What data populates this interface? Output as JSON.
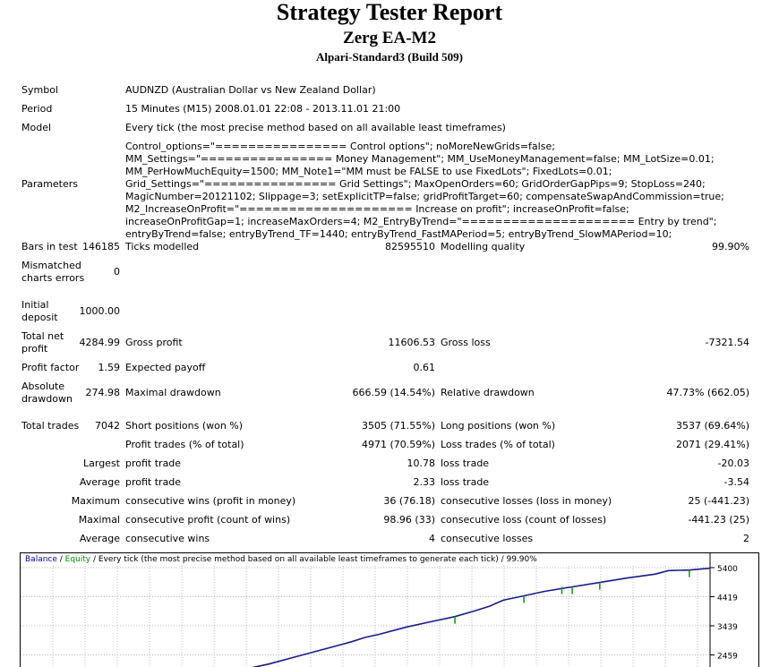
{
  "header": {
    "title": "Strategy Tester Report",
    "ea_name": "Zerg EA-M2",
    "server": "Alpari-Standard3 (Build 509)"
  },
  "info": {
    "symbol_label": "Symbol",
    "symbol_value": "AUDNZD (Australian Dollar vs New Zealand Dollar)",
    "period_label": "Period",
    "period_value": "15 Minutes (M15) 2008.01.01 22:08 - 2013.11.01 21:00",
    "model_label": "Model",
    "model_value": "Every tick (the most precise method based on all available least timeframes)",
    "parameters_label": "Parameters",
    "parameters_value": "Control_options=\"================ Control options\"; noMoreNewGrids=false; MM_Settings=\"================ Money Management\"; MM_UseMoneyManagement=false; MM_LotSize=0.01; MM_PerHowMuchEquity=1500; MM_Note1=\"MM must be FALSE to use FixedLots\"; FixedLots=0.01; Grid_Settings=\"================ Grid Settings\"; MaxOpenOrders=60; GridOrderGapPips=9; StopLoss=240; MagicNumber=20121102; Slippage=3; setExplicitTP=false; gridProfitTarget=60; compensateSwapAndCommission=true; M2_IncreaseOnProfit=\"===================== Increase on profit\"; increaseOnProfit=false; increaseOnProfitGap=1; increaseMaxOrders=4; M2_EntryByTrend=\"===================== Entry by trend\"; entryByTrend=false; entryByTrend_TF=1440; entryByTrend_FastMAPeriod=5; entryByTrend_SlowMAPeriod=10;"
  },
  "stats": {
    "bars_label": "Bars in test",
    "bars_value": "146185",
    "ticks_label": "Ticks modelled",
    "ticks_value": "82595510",
    "quality_label": "Modelling quality",
    "quality_value": "99.90%",
    "mismatched_label_1": "Mismatched",
    "mismatched_label_2": "charts errors",
    "mismatched_value": "0",
    "initial_label_1": "Initial",
    "initial_label_2": "deposit",
    "initial_value": "1000.00",
    "net_label_1": "Total net",
    "net_label_2": "profit",
    "net_value": "4284.99",
    "gross_profit_label": "Gross profit",
    "gross_profit_value": "11606.53",
    "gross_loss_label": "Gross loss",
    "gross_loss_value": "-7321.54",
    "pf_label": "Profit factor",
    "pf_value": "1.59",
    "payoff_label": "Expected payoff",
    "payoff_value": "0.61",
    "abs_dd_label_1": "Absolute",
    "abs_dd_label_2": "drawdown",
    "abs_dd_value": "274.98",
    "max_dd_label": "Maximal drawdown",
    "max_dd_value": "666.59 (14.54%)",
    "rel_dd_label": "Relative drawdown",
    "rel_dd_value": "47.73% (662.05)",
    "trades_label": "Total trades",
    "trades_value": "7042",
    "short_label": "Short positions (won %)",
    "short_value": "3505 (71.55%)",
    "long_label": "Long positions (won %)",
    "long_value": "3537 (69.64%)",
    "profit_trades_label": "Profit trades (% of total)",
    "profit_trades_value": "4971 (70.59%)",
    "loss_trades_label": "Loss trades (% of total)",
    "loss_trades_value": "2071 (29.41%)",
    "largest_label": "Largest",
    "largest_profit_label": "profit trade",
    "largest_profit_value": "10.78",
    "largest_loss_label": "loss trade",
    "largest_loss_value": "-20.03",
    "average_label": "Average",
    "average_profit_label": "profit trade",
    "average_profit_value": "2.33",
    "average_loss_label": "loss trade",
    "average_loss_value": "-3.54",
    "maximum_label": "Maximum",
    "max_wins_label": "consecutive wins (profit in money)",
    "max_wins_value": "36 (76.18)",
    "max_losses_label": "consecutive losses (loss in money)",
    "max_losses_value": "25 (-441.23)",
    "maximal_label": "Maximal",
    "maximal_profit_label": "consecutive profit (count of wins)",
    "maximal_profit_value": "98.96 (33)",
    "maximal_loss_label": "consecutive loss (count of losses)",
    "maximal_loss_value": "-441.23 (25)",
    "average2_label": "Average",
    "avg_wins_label": "consecutive wins",
    "avg_wins_value": "4",
    "avg_losses_label": "consecutive losses",
    "avg_losses_value": "2"
  },
  "chart_data": {
    "type": "line",
    "legend": {
      "balance": "Balance",
      "sep1": " / ",
      "equity": "Equity",
      "rest": " / Every tick (the most precise method based on all available least timeframes to generate each tick) / 99.90%"
    },
    "y_ticks": [
      "5400",
      "4419",
      "3439",
      "2459"
    ],
    "ylim": [
      1800,
      5600
    ],
    "colors": {
      "balance": "#1a1a8c",
      "equity": "#00a000",
      "legend_balance": "#0000aa",
      "legend_equity": "#009000"
    },
    "x": [
      0.28,
      0.32,
      0.36,
      0.4,
      0.44,
      0.48,
      0.5,
      0.52,
      0.56,
      0.6,
      0.63,
      0.66,
      0.68,
      0.7,
      0.73,
      0.76,
      0.8,
      0.84,
      0.88,
      0.92,
      0.94,
      0.97,
      1.0
    ],
    "balance": [
      1700,
      1950,
      2150,
      2400,
      2650,
      2900,
      3050,
      3150,
      3400,
      3600,
      3750,
      3950,
      4100,
      4300,
      4450,
      4600,
      4750,
      4900,
      5050,
      5180,
      5300,
      5320,
      5380
    ]
  }
}
